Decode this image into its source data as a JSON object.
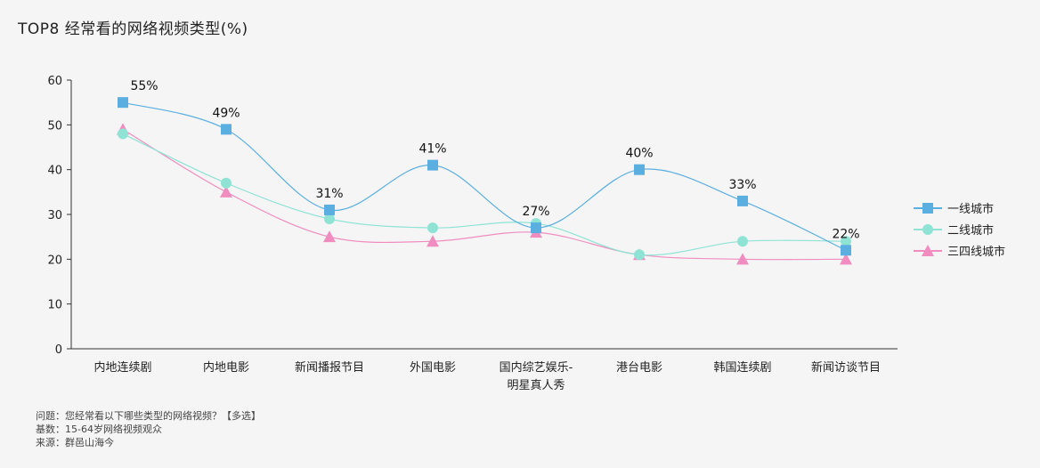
{
  "chart_data": {
    "type": "line",
    "title": "TOP8 经常看的网络视频类型(%)",
    "categories": [
      "内地连续剧",
      "内地电影",
      "新闻播报节目",
      "外国电影",
      "国内综艺娱乐-明星真人秀",
      "港台电影",
      "韩国连续剧",
      "新闻访谈节目"
    ],
    "ylim": [
      0,
      60
    ],
    "yticks": [
      0,
      10,
      20,
      30,
      40,
      50,
      60
    ],
    "grid": false,
    "legend_position": "right",
    "series": [
      {
        "name": "一线城市",
        "color": "#5aafe0",
        "marker": "square",
        "values": [
          55,
          49,
          31,
          41,
          27,
          40,
          33,
          22
        ]
      },
      {
        "name": "二线城市",
        "color": "#8ee3d5",
        "marker": "circle",
        "values": [
          48,
          37,
          29,
          27,
          28,
          21,
          24,
          24
        ]
      },
      {
        "name": "三四线城市",
        "color": "#f08cbf",
        "marker": "triangle",
        "values": [
          49,
          35,
          25,
          24,
          26,
          21,
          20,
          20
        ]
      }
    ],
    "data_labels": [
      "55%",
      "49%",
      "31%",
      "41%",
      "27%",
      "40%",
      "33%",
      "22%"
    ]
  },
  "footnotes": {
    "question": "问题：您经常看以下哪些类型的网络视频？【多选】",
    "base": "基数：15-64岁网络视频观众",
    "source": "来源：群邑山海今"
  }
}
